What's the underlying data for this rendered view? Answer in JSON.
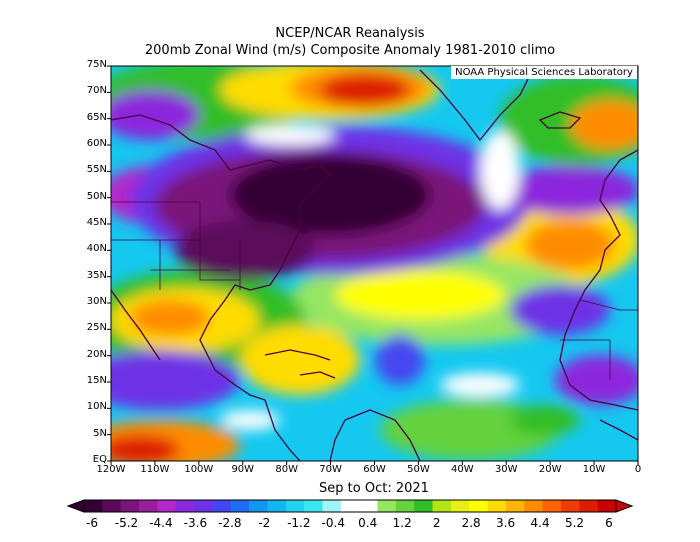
{
  "titles": {
    "line1": "NCEP/NCAR Reanalysis",
    "line2": "200mb Zonal Wind (m/s) Composite Anomaly 1981-2010 climo"
  },
  "credit": "NOAA Physical Sciences Laboratory",
  "time_label": "Sep to Oct: 2021",
  "lat_ticks": [
    "75N",
    "70N",
    "65N",
    "60N",
    "55N",
    "50N",
    "45N",
    "40N",
    "35N",
    "30N",
    "25N",
    "20N",
    "15N",
    "10N",
    "5N",
    "EQ"
  ],
  "lon_ticks": [
    "120W",
    "110W",
    "100W",
    "90W",
    "80W",
    "70W",
    "60W",
    "50W",
    "40W",
    "30W",
    "20W",
    "10W",
    "0"
  ],
  "colorbar": {
    "labels": [
      "-6",
      "-5.2",
      "-4.4",
      "-3.6",
      "-2.8",
      "-2",
      "-1.2",
      "-0.4",
      "0.4",
      "1.2",
      "2",
      "2.8",
      "3.6",
      "4.4",
      "5.2",
      "6"
    ],
    "colors": [
      "#330033",
      "#5a0a5a",
      "#7a147a",
      "#991e99",
      "#b428c8",
      "#8c28dc",
      "#6e32e6",
      "#4646f0",
      "#1e6ef5",
      "#1496f0",
      "#14b4f0",
      "#1ed2f0",
      "#3ce6f0",
      "#a0f5f5",
      "#ffffff",
      "#ffffff",
      "#96e664",
      "#64d23c",
      "#32be28",
      "#b4e614",
      "#e6f014",
      "#ffff00",
      "#ffdc00",
      "#ffb400",
      "#ff8c00",
      "#ff6400",
      "#f03c00",
      "#dc1e00",
      "#c80000"
    ]
  },
  "map": {
    "region": "120W-0, EQ-75N",
    "variable": "200mb zonal wind anomaly",
    "units": "m/s"
  }
}
